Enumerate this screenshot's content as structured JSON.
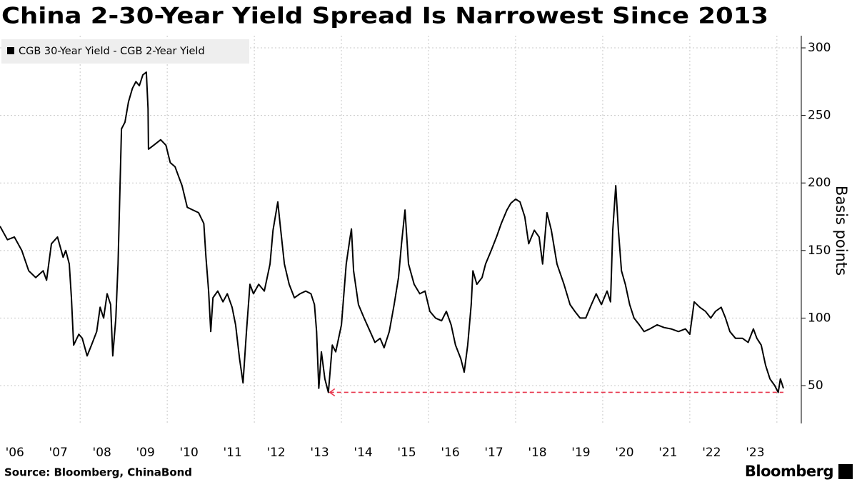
{
  "chart_data": {
    "type": "line",
    "title": "China 2-30-Year Yield Spread Is Narrowest Since 2013",
    "y_axis_label": "Basis points",
    "source": "Source: Bloomberg, ChinaBond",
    "brand": "Bloomberg",
    "xlim": [
      2006.16,
      2024.56
    ],
    "ylim": [
      22,
      309
    ],
    "yticks": [
      50,
      100,
      150,
      200,
      250,
      300
    ],
    "xticks": [
      {
        "value": 2006.5,
        "label": "'06"
      },
      {
        "value": 2007.5,
        "label": "'07"
      },
      {
        "value": 2008.5,
        "label": "'08"
      },
      {
        "value": 2009.5,
        "label": "'09"
      },
      {
        "value": 2010.5,
        "label": "'10"
      },
      {
        "value": 2011.5,
        "label": "'11"
      },
      {
        "value": 2012.5,
        "label": "'12"
      },
      {
        "value": 2013.5,
        "label": "'13"
      },
      {
        "value": 2014.5,
        "label": "'14"
      },
      {
        "value": 2015.5,
        "label": "'15"
      },
      {
        "value": 2016.5,
        "label": "'16"
      },
      {
        "value": 2017.5,
        "label": "'17"
      },
      {
        "value": 2018.5,
        "label": "'18"
      },
      {
        "value": 2019.5,
        "label": "'19"
      },
      {
        "value": 2020.5,
        "label": "'20"
      },
      {
        "value": 2021.5,
        "label": "'21"
      },
      {
        "value": 2022.5,
        "label": "'22"
      },
      {
        "value": 2023.5,
        "label": "'23"
      }
    ],
    "xgrid": [
      2008,
      2010,
      2012,
      2014,
      2016,
      2018,
      2020,
      2022,
      2024
    ],
    "grid": true,
    "x": [
      2006.16,
      2006.33,
      2006.49,
      2006.66,
      2006.82,
      2006.98,
      2007.15,
      2007.23,
      2007.34,
      2007.48,
      2007.61,
      2007.67,
      2007.75,
      2007.8,
      2007.85,
      2007.97,
      2008.05,
      2008.16,
      2008.26,
      2008.38,
      2008.46,
      2008.54,
      2008.62,
      2008.7,
      2008.75,
      2008.82,
      2008.87,
      2008.95,
      2009.03,
      2009.11,
      2009.2,
      2009.28,
      2009.36,
      2009.44,
      2009.52,
      2009.56,
      2009.57,
      2009.69,
      2009.85,
      2009.97,
      2010.07,
      2010.18,
      2010.26,
      2010.34,
      2010.46,
      2010.59,
      2010.72,
      2010.84,
      2010.89,
      2010.95,
      2011.0,
      2011.05,
      2011.16,
      2011.28,
      2011.38,
      2011.49,
      2011.57,
      2011.66,
      2011.74,
      2011.82,
      2011.9,
      2011.98,
      2012.1,
      2012.23,
      2012.36,
      2012.43,
      2012.54,
      2012.59,
      2012.69,
      2012.8,
      2012.92,
      2013.05,
      2013.18,
      2013.3,
      2013.38,
      2013.43,
      2013.48,
      2013.54,
      2013.62,
      2013.7,
      2013.79,
      2013.87,
      2014.0,
      2014.11,
      2014.2,
      2014.23,
      2014.28,
      2014.39,
      2014.52,
      2014.66,
      2014.77,
      2014.89,
      2014.98,
      2015.1,
      2015.21,
      2015.31,
      2015.38,
      2015.46,
      2015.54,
      2015.67,
      2015.8,
      2015.92,
      2016.03,
      2016.16,
      2016.3,
      2016.41,
      2016.52,
      2016.62,
      2016.74,
      2016.82,
      2016.9,
      2016.98,
      2017.02,
      2017.11,
      2017.23,
      2017.31,
      2017.44,
      2017.56,
      2017.67,
      2017.8,
      2017.89,
      2018.0,
      2018.1,
      2018.21,
      2018.3,
      2018.43,
      2018.54,
      2018.62,
      2018.72,
      2018.82,
      2018.95,
      2019.11,
      2019.25,
      2019.36,
      2019.48,
      2019.61,
      2019.74,
      2019.85,
      2019.97,
      2020.1,
      2020.18,
      2020.23,
      2020.3,
      2020.36,
      2020.43,
      2020.52,
      2020.62,
      2020.72,
      2020.84,
      2020.95,
      2021.08,
      2021.25,
      2021.41,
      2021.57,
      2021.74,
      2021.9,
      2022.0,
      2022.1,
      2022.23,
      2022.36,
      2022.48,
      2022.59,
      2022.72,
      2022.82,
      2022.92,
      2023.05,
      2023.21,
      2023.34,
      2023.46,
      2023.54,
      2023.64,
      2023.74,
      2023.84,
      2023.95,
      2024.03,
      2024.08,
      2024.15
    ],
    "series": [
      {
        "name": "CGB 30-Year Yield - CGB 2-Year Yield",
        "color": "#000000",
        "values": [
          168,
          158,
          160,
          150,
          135,
          130,
          135,
          128,
          155,
          160,
          145,
          150,
          140,
          115,
          80,
          88,
          85,
          72,
          80,
          90,
          108,
          100,
          118,
          110,
          72,
          100,
          140,
          240,
          245,
          260,
          270,
          275,
          272,
          280,
          282,
          255,
          225,
          228,
          232,
          228,
          215,
          212,
          205,
          198,
          182,
          180,
          178,
          170,
          145,
          120,
          90,
          115,
          120,
          112,
          118,
          108,
          95,
          70,
          52,
          90,
          125,
          118,
          125,
          120,
          140,
          165,
          186,
          170,
          140,
          125,
          115,
          118,
          120,
          118,
          110,
          90,
          48,
          75,
          55,
          45,
          80,
          75,
          95,
          140,
          160,
          166,
          135,
          110,
          100,
          90,
          82,
          85,
          78,
          90,
          110,
          130,
          155,
          180,
          140,
          125,
          118,
          120,
          105,
          100,
          98,
          105,
          95,
          80,
          70,
          60,
          80,
          110,
          135,
          125,
          130,
          140,
          150,
          160,
          170,
          180,
          185,
          188,
          186,
          175,
          155,
          165,
          160,
          140,
          178,
          165,
          140,
          125,
          110,
          105,
          100,
          100,
          110,
          118,
          110,
          120,
          112,
          165,
          198,
          165,
          135,
          125,
          110,
          100,
          95,
          90,
          92,
          95,
          93,
          92,
          90,
          92,
          88,
          112,
          108,
          105,
          100,
          105,
          108,
          100,
          90,
          85,
          85,
          82,
          92,
          85,
          80,
          65,
          55,
          50,
          45,
          55,
          48
        ]
      }
    ],
    "annotation_line": {
      "y": 45,
      "x_start": 2013.7,
      "x_end": 2024.15,
      "color": "#e8384f"
    }
  }
}
